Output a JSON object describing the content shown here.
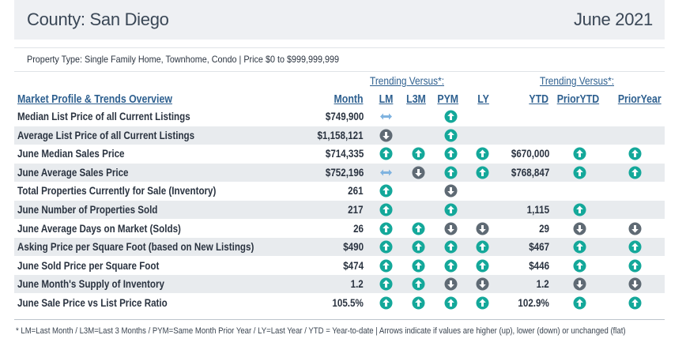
{
  "header": {
    "county": "County: San Diego",
    "date": "June 2021"
  },
  "filter": "Property Type: Single Family Home, Townhome, Condo | Price $0 to $999,999,999",
  "trending_left": "Trending Versus*:",
  "trending_right": "Trending Versus*:",
  "columns": {
    "title": "Market Profile & Trends Overview",
    "month": "Month",
    "lm": "LM",
    "l3m": "L3M",
    "pym": "PYM",
    "ly": "LY",
    "ytd": "YTD",
    "prior_ytd": "PriorYTD",
    "prior_year": "PriorYear"
  },
  "colors": {
    "up": "#14a89a",
    "down": "#5f6a74",
    "flat": "#7fb3e0",
    "alt_row": "#e8ebee",
    "header_link": "#2d5f8f"
  },
  "rows": [
    {
      "label": "Median List Price of all Current Listings",
      "month": "$749,900",
      "lm": "flat",
      "l3m": "",
      "pym": "up",
      "ly": "",
      "ytd": "",
      "prior_ytd": "",
      "prior_year": ""
    },
    {
      "label": "Average List Price of all Current Listings",
      "month": "$1,158,121",
      "lm": "down",
      "l3m": "",
      "pym": "up",
      "ly": "",
      "ytd": "",
      "prior_ytd": "",
      "prior_year": ""
    },
    {
      "label": "June Median Sales Price",
      "month": "$714,335",
      "lm": "up",
      "l3m": "up",
      "pym": "up",
      "ly": "up",
      "ytd": "$670,000",
      "prior_ytd": "up",
      "prior_year": "up"
    },
    {
      "label": "June Average Sales Price",
      "month": "$752,196",
      "lm": "flat",
      "l3m": "down",
      "pym": "up",
      "ly": "up",
      "ytd": "$768,847",
      "prior_ytd": "up",
      "prior_year": "up"
    },
    {
      "label": "Total Properties Currently for Sale (Inventory)",
      "month": "261",
      "lm": "up",
      "l3m": "",
      "pym": "down",
      "ly": "",
      "ytd": "",
      "prior_ytd": "",
      "prior_year": ""
    },
    {
      "label": "June Number of Properties Sold",
      "month": "217",
      "lm": "up",
      "l3m": "",
      "pym": "up",
      "ly": "",
      "ytd": "1,115",
      "prior_ytd": "up",
      "prior_year": ""
    },
    {
      "label": "June Average Days on Market (Solds)",
      "month": "26",
      "lm": "up",
      "l3m": "up",
      "pym": "down",
      "ly": "down",
      "ytd": "29",
      "prior_ytd": "down",
      "prior_year": "down"
    },
    {
      "label": "Asking Price per Square Foot (based on New Listings)",
      "month": "$490",
      "lm": "up",
      "l3m": "up",
      "pym": "up",
      "ly": "up",
      "ytd": "$467",
      "prior_ytd": "up",
      "prior_year": "up"
    },
    {
      "label": "June Sold Price per Square Foot",
      "month": "$474",
      "lm": "up",
      "l3m": "up",
      "pym": "up",
      "ly": "up",
      "ytd": "$446",
      "prior_ytd": "up",
      "prior_year": "up"
    },
    {
      "label": "June Month's Supply of Inventory",
      "month": "1.2",
      "lm": "up",
      "l3m": "up",
      "pym": "down",
      "ly": "down",
      "ytd": "1.2",
      "prior_ytd": "down",
      "prior_year": "down"
    },
    {
      "label": "June Sale Price vs List Price Ratio",
      "month": "105.5%",
      "lm": "up",
      "l3m": "up",
      "pym": "up",
      "ly": "up",
      "ytd": "102.9%",
      "prior_ytd": "up",
      "prior_year": "up"
    }
  ],
  "footnote": "* LM=Last Month / L3M=Last 3 Months / PYM=Same Month Prior Year / LY=Last Year / YTD = Year-to-date | Arrows indicate if values are higher (up), lower (down) or unchanged (flat)"
}
